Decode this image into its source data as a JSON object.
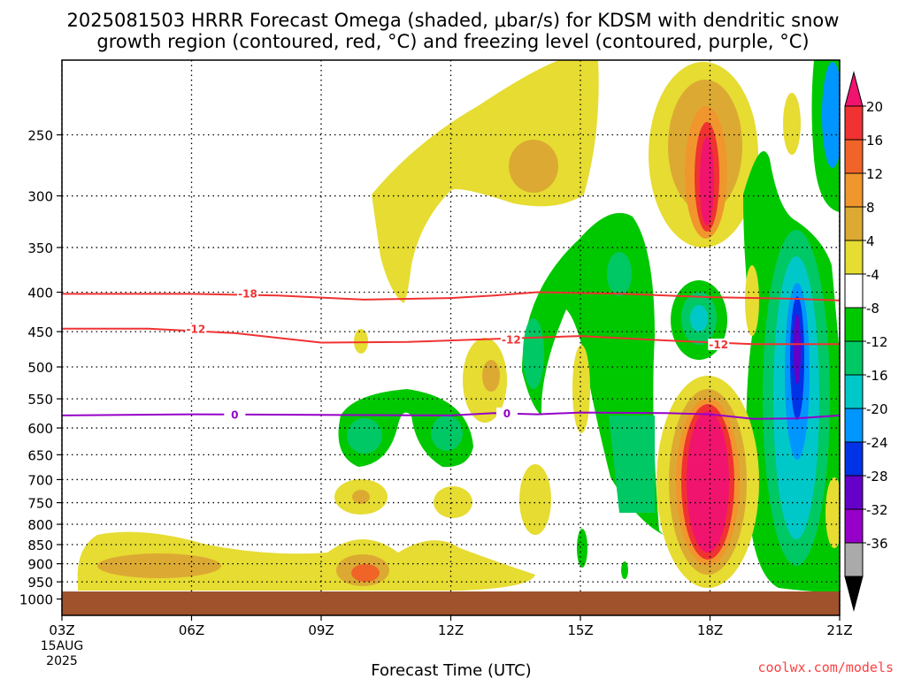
{
  "chart_data": {
    "type": "heatmap",
    "title_line1": "2025081503 HRRR Forecast Omega (shaded, μbar/s) for KDSM with dendritic snow",
    "title_line2": "growth region (contoured, red, °C) and freezing level (contoured, purple, °C)",
    "xlabel": "Forecast Time (UTC)",
    "x_ticks": [
      "03Z",
      "06Z",
      "09Z",
      "12Z",
      "15Z",
      "18Z",
      "21Z"
    ],
    "x_date_line1": "15AUG",
    "x_date_line2": "2025",
    "y_ticks": [
      250,
      300,
      350,
      400,
      450,
      500,
      550,
      600,
      650,
      700,
      750,
      800,
      850,
      900,
      950,
      1000
    ],
    "ylim": [
      1000,
      200
    ],
    "ylog": true,
    "colorbar_labels": [
      20,
      16,
      12,
      8,
      4,
      -4,
      -8,
      -12,
      -16,
      -20,
      -24,
      -28,
      -32,
      -36
    ],
    "colorbar_colors": [
      "#f0146e",
      "#f03232",
      "#f06428",
      "#f0962d",
      "#dcaa32",
      "#e6dc32",
      "#ffffff",
      "#00c800",
      "#00c864",
      "#00c8c8",
      "#0096ff",
      "#0032e6",
      "#6400c8",
      "#9600c8",
      "#aaaaaa",
      "#000000"
    ],
    "contours": [
      {
        "label": "-18",
        "color": "#f03232",
        "points": [
          [
            3,
            402
          ],
          [
            6,
            402
          ],
          [
            8,
            404
          ],
          [
            10,
            409
          ],
          [
            12,
            407
          ],
          [
            13,
            404
          ],
          [
            14,
            400
          ],
          [
            16,
            402
          ],
          [
            18,
            406
          ],
          [
            20,
            408
          ],
          [
            21,
            410
          ]
        ]
      },
      {
        "label": "-12",
        "color": "#f03232",
        "points": [
          [
            3,
            446
          ],
          [
            5,
            446
          ],
          [
            7,
            452
          ],
          [
            9,
            465
          ],
          [
            11,
            464
          ],
          [
            13,
            460
          ],
          [
            15,
            456
          ],
          [
            17,
            462
          ],
          [
            19,
            467
          ],
          [
            21,
            467
          ]
        ]
      },
      {
        "label": "0",
        "color": "#9600c8",
        "points": [
          [
            3,
            578
          ],
          [
            6,
            576
          ],
          [
            9,
            577
          ],
          [
            12,
            578
          ],
          [
            13,
            574
          ],
          [
            14,
            576
          ],
          [
            15,
            573
          ],
          [
            17,
            574
          ],
          [
            18,
            576
          ],
          [
            19,
            584
          ],
          [
            20,
            583
          ],
          [
            21,
            578
          ]
        ]
      }
    ],
    "contour_label_positions": [
      {
        "label": "-18",
        "x": 7.3,
        "p": 402
      },
      {
        "label": "-12",
        "x": 6.1,
        "p": 447
      },
      {
        "label": "-12",
        "x": 13.4,
        "p": 461
      },
      {
        "label": "-12",
        "x": 18.2,
        "p": 468
      },
      {
        "label": "0",
        "x": 7.0,
        "p": 577
      },
      {
        "label": "0",
        "x": 13.3,
        "p": 575
      }
    ],
    "terrain_color": "#a0522d",
    "credit": "coolwx.com/models"
  }
}
